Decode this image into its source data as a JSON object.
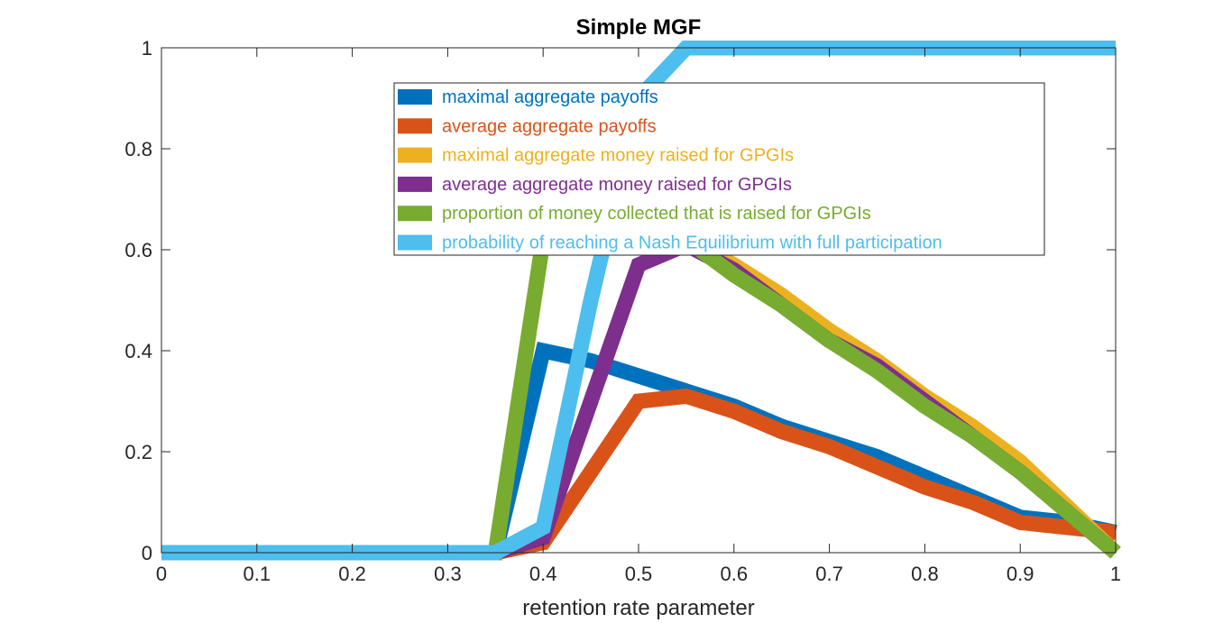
{
  "chart_data": {
    "type": "line",
    "title": "Simple MGF",
    "xlabel": "retention rate parameter",
    "ylabel": "",
    "xlim": [
      0,
      1
    ],
    "ylim": [
      0,
      1
    ],
    "xticks": [
      "0",
      "0.1",
      "0.2",
      "0.3",
      "0.4",
      "0.5",
      "0.6",
      "0.7",
      "0.8",
      "0.9",
      "1"
    ],
    "yticks": [
      "0",
      "0.2",
      "0.4",
      "0.6",
      "0.8",
      "1"
    ],
    "grid": false,
    "legend_position": "top-center",
    "x": [
      0,
      0.05,
      0.1,
      0.15,
      0.2,
      0.25,
      0.3,
      0.35,
      0.4,
      0.45,
      0.5,
      0.55,
      0.6,
      0.65,
      0.7,
      0.75,
      0.8,
      0.85,
      0.9,
      0.95,
      1
    ],
    "series": [
      {
        "name": "maximal aggregate payoffs",
        "color": "#0072BD",
        "values": [
          0,
          0,
          0,
          0,
          0,
          0,
          0,
          0,
          0.4,
          0.38,
          0.35,
          0.32,
          0.29,
          0.25,
          0.22,
          0.19,
          0.15,
          0.11,
          0.07,
          0.06,
          0.04
        ]
      },
      {
        "name": "average aggregate payoffs",
        "color": "#D95319",
        "values": [
          0,
          0,
          0,
          0,
          0,
          0,
          0,
          0,
          0.02,
          0.16,
          0.3,
          0.31,
          0.28,
          0.24,
          0.21,
          0.17,
          0.13,
          0.1,
          0.06,
          0.05,
          0.04
        ]
      },
      {
        "name": "maximal aggregate money raised for GPGIs",
        "color": "#EDB120",
        "values": [
          0,
          0,
          0,
          0,
          0,
          0,
          0,
          0,
          0.62,
          0.62,
          0.62,
          0.62,
          0.57,
          0.51,
          0.44,
          0.38,
          0.31,
          0.25,
          0.18,
          0.09,
          0
        ]
      },
      {
        "name": "average aggregate money raised for GPGIs",
        "color": "#7E2F8E",
        "values": [
          0,
          0,
          0,
          0,
          0,
          0,
          0,
          0,
          0.03,
          0.3,
          0.57,
          0.61,
          0.56,
          0.49,
          0.42,
          0.37,
          0.3,
          0.23,
          0.16,
          0.08,
          0
        ]
      },
      {
        "name": "proportion of money collected that is raised for GPGIs",
        "color": "#77AC30",
        "values": [
          0,
          0,
          0,
          0,
          0,
          0,
          0,
          0,
          0.62,
          0.62,
          0.62,
          0.62,
          0.55,
          0.49,
          0.42,
          0.36,
          0.29,
          0.23,
          0.16,
          0.08,
          0
        ]
      },
      {
        "name": "probability of reaching a Nash Equilibrium with full participation",
        "color": "#4DBEEE",
        "values": [
          0,
          0,
          0,
          0,
          0,
          0,
          0,
          0,
          0.05,
          0.5,
          0.9,
          1,
          1,
          1,
          1,
          1,
          1,
          1,
          1,
          1,
          1
        ]
      }
    ]
  }
}
